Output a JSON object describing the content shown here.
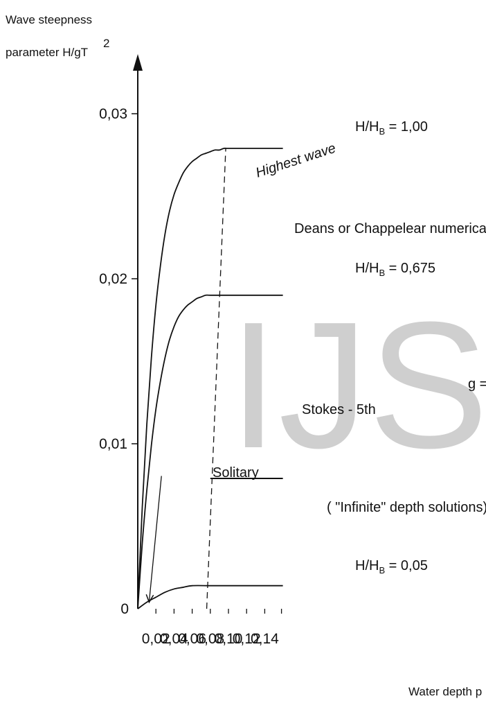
{
  "chart_data": {
    "type": "line",
    "ylabel_line1": "Wave steepness",
    "ylabel_line2": "parameter H/gT",
    "ylabel_sup": "2",
    "xlabel": "Water depth p",
    "xlim": [
      0,
      0.16
    ],
    "ylim": [
      0,
      0.03
    ],
    "x_ticks": [
      0.02,
      0.04,
      0.06,
      0.08,
      0.1,
      0.12,
      0.14
    ],
    "x_tick_labels": [
      "0,02",
      "0,04",
      "0,06",
      "0,08",
      "0,10",
      "0,12",
      "0,14"
    ],
    "y_ticks": [
      0,
      0.01,
      0.02,
      0.03
    ],
    "y_tick_labels": [
      "0",
      "0,01",
      "0,02",
      "0,03"
    ],
    "series": [
      {
        "name": "Highest wave",
        "x": [
          0,
          0.005,
          0.01,
          0.015,
          0.02,
          0.025,
          0.03,
          0.035,
          0.04,
          0.045,
          0.05,
          0.055,
          0.06,
          0.065,
          0.07,
          0.075,
          0.08,
          0.085,
          0.09,
          0.095,
          0.1,
          0.12,
          0.14,
          0.16
        ],
        "y": [
          0,
          0.0062,
          0.0112,
          0.0152,
          0.0184,
          0.0208,
          0.0227,
          0.0241,
          0.0251,
          0.0258,
          0.0264,
          0.0268,
          0.0271,
          0.0273,
          0.0275,
          0.0276,
          0.0277,
          0.0278,
          0.0278,
          0.0279,
          0.0279,
          0.0279,
          0.0279,
          0.0279
        ]
      },
      {
        "x": [
          0,
          0.005,
          0.01,
          0.015,
          0.02,
          0.025,
          0.03,
          0.035,
          0.04,
          0.045,
          0.05,
          0.055,
          0.06,
          0.065,
          0.07,
          0.075,
          0.08,
          0.1,
          0.12,
          0.14,
          0.16
        ],
        "y": [
          0,
          0.004,
          0.0072,
          0.0099,
          0.0121,
          0.0138,
          0.0152,
          0.0163,
          0.0171,
          0.0177,
          0.0181,
          0.0184,
          0.0186,
          0.0188,
          0.0189,
          0.019,
          0.019,
          0.019,
          0.019,
          0.019,
          0.019
        ]
      },
      {
        "x": [
          0,
          0.01,
          0.02,
          0.03,
          0.04,
          0.05,
          0.06,
          0.08,
          0.1,
          0.12,
          0.14,
          0.16
        ],
        "y": [
          0,
          0.0004,
          0.0007,
          0.001,
          0.0012,
          0.0013,
          0.0014,
          0.0014,
          0.0014,
          0.0014,
          0.0014,
          0.0014
        ]
      }
    ],
    "boundary_dashed": {
      "x": [
        0.076,
        0.097
      ],
      "y": [
        0,
        0.0279
      ]
    },
    "infinite_depth_line": {
      "x": [
        0.08,
        0.16
      ],
      "y": 0.0079
    },
    "solitary_arrow": {
      "from": [
        0.02,
        0.0083
      ],
      "to": [
        0.011,
        0.0004
      ]
    },
    "annotations": {
      "highest_wave": "Highest wave",
      "h_100": "H/H",
      "h_100_sub": "B",
      "h_100_val": " = 1,00",
      "h_0675": "H/H",
      "h_0675_sub": "B",
      "h_0675_val": " = 0,675",
      "h_005": "H/H",
      "h_005_sub": "B",
      "h_005_val": " = 0,05",
      "deans": "Deans or Chappelear numerica",
      "stokes": "Stokes - 5th",
      "solitary": "Solitary",
      "infinite": "( \"Infinite\" depth solutions)",
      "g_partial": "g ="
    },
    "watermark": "IJS"
  }
}
